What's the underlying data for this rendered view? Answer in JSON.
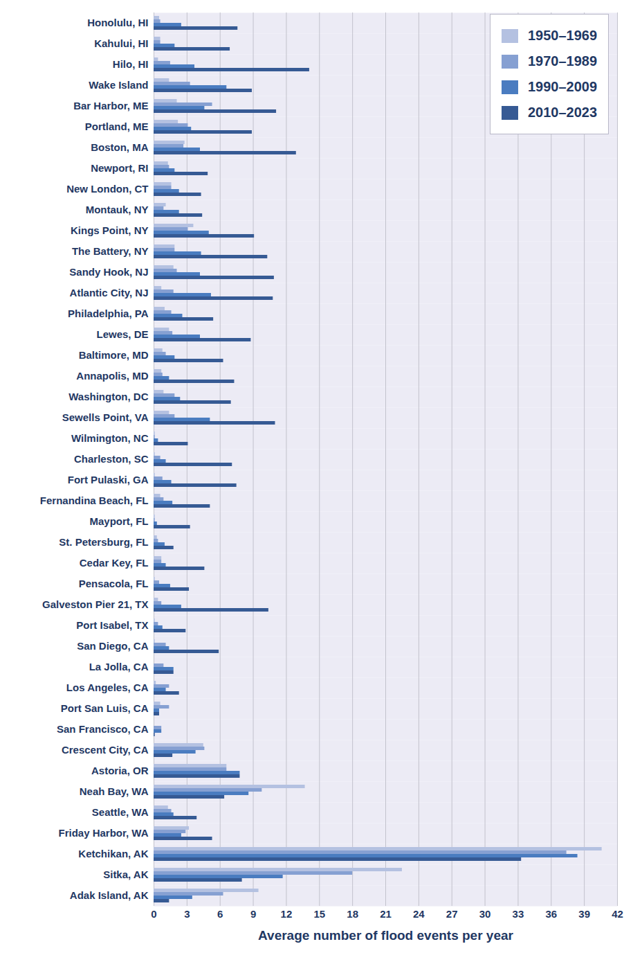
{
  "chart_data": {
    "type": "bar",
    "orientation": "horizontal",
    "categories": [
      "Honolulu, HI",
      "Kahului, HI",
      "Hilo, HI",
      "Wake Island",
      "Bar Harbor, ME",
      "Portland, ME",
      "Boston, MA",
      "Newport, RI",
      "New London, CT",
      "Montauk, NY",
      "Kings Point, NY",
      "The Battery, NY",
      "Sandy Hook, NJ",
      "Atlantic City, NJ",
      "Philadelphia, PA",
      "Lewes, DE",
      "Baltimore, MD",
      "Annapolis, MD",
      "Washington, DC",
      "Sewells Point, VA",
      "Wilmington, NC",
      "Charleston, SC",
      "Fort Pulaski, GA",
      "Fernandina Beach, FL",
      "Mayport, FL",
      "St. Petersburg, FL",
      "Cedar Key, FL",
      "Pensacola, FL",
      "Galveston Pier 21, TX",
      "Port Isabel, TX",
      "San Diego, CA",
      "La Jolla, CA",
      "Los Angeles, CA",
      "Port San Luis, CA",
      "San Francisco, CA",
      "Crescent City, CA",
      "Astoria, OR",
      "Neah Bay, WA",
      "Seattle, WA",
      "Friday Harbor, WA",
      "Ketchikan, AK",
      "Sitka, AK",
      "Adak Island, AK"
    ],
    "series": [
      {
        "name": "1950–1969",
        "color": "#b4c1e1",
        "values": [
          0.5,
          0.6,
          0.4,
          1.4,
          2.1,
          2.2,
          2.8,
          1.3,
          1.6,
          1.1,
          3.6,
          1.9,
          1.8,
          0.7,
          1.0,
          1.4,
          0.8,
          0.7,
          0.9,
          1.4,
          0.1,
          0.1,
          0.1,
          0.6,
          0.1,
          0.3,
          0.7,
          0.1,
          0.4,
          0.1,
          0.1,
          0.0,
          0.2,
          0.6,
          0.0,
          4.5,
          6.6,
          13.7,
          1.3,
          3.2,
          40.6,
          22.5,
          9.5
        ]
      },
      {
        "name": "1970–1989",
        "color": "#86a0d2",
        "values": [
          0.6,
          0.6,
          1.5,
          3.3,
          5.3,
          3.1,
          2.7,
          1.4,
          1.6,
          0.9,
          3.1,
          1.9,
          2.1,
          1.8,
          1.6,
          1.7,
          1.1,
          0.8,
          1.9,
          1.9,
          0.1,
          0.6,
          0.8,
          0.9,
          0.1,
          0.4,
          0.7,
          0.5,
          0.7,
          0.4,
          1.1,
          0.9,
          1.4,
          1.4,
          0.7,
          4.6,
          6.6,
          9.8,
          1.6,
          2.9,
          37.4,
          18.0,
          6.3
        ]
      },
      {
        "name": "1990–2009",
        "color": "#4a7cc0",
        "values": [
          2.5,
          1.9,
          3.7,
          6.6,
          4.6,
          3.4,
          4.2,
          1.9,
          2.3,
          2.3,
          5.0,
          4.3,
          4.2,
          5.2,
          2.6,
          4.2,
          1.9,
          1.4,
          2.4,
          5.1,
          0.4,
          1.1,
          1.6,
          1.7,
          0.3,
          1.0,
          1.1,
          1.5,
          2.5,
          0.8,
          1.4,
          1.8,
          1.1,
          0.5,
          0.7,
          3.8,
          7.8,
          8.6,
          1.8,
          2.5,
          38.4,
          11.7,
          3.5
        ]
      },
      {
        "name": "2010–2023",
        "color": "#365a94",
        "values": [
          7.6,
          6.9,
          14.1,
          8.9,
          11.1,
          8.9,
          12.9,
          4.9,
          4.3,
          4.4,
          9.1,
          10.3,
          10.9,
          10.8,
          5.4,
          8.8,
          6.3,
          7.3,
          7.0,
          11.0,
          3.1,
          7.1,
          7.5,
          5.1,
          3.3,
          1.8,
          4.6,
          3.2,
          10.4,
          2.9,
          5.9,
          1.8,
          2.3,
          0.5,
          0.1,
          1.7,
          7.8,
          6.4,
          3.9,
          5.3,
          33.3,
          8.0,
          1.4
        ]
      }
    ],
    "xlabel": "Average number of flood events per year",
    "xlim": [
      0,
      42
    ],
    "xticks": [
      0,
      3,
      6,
      9,
      12,
      15,
      18,
      21,
      24,
      27,
      30,
      33,
      36,
      39,
      42
    ],
    "grid": true,
    "legend": "upper right"
  }
}
